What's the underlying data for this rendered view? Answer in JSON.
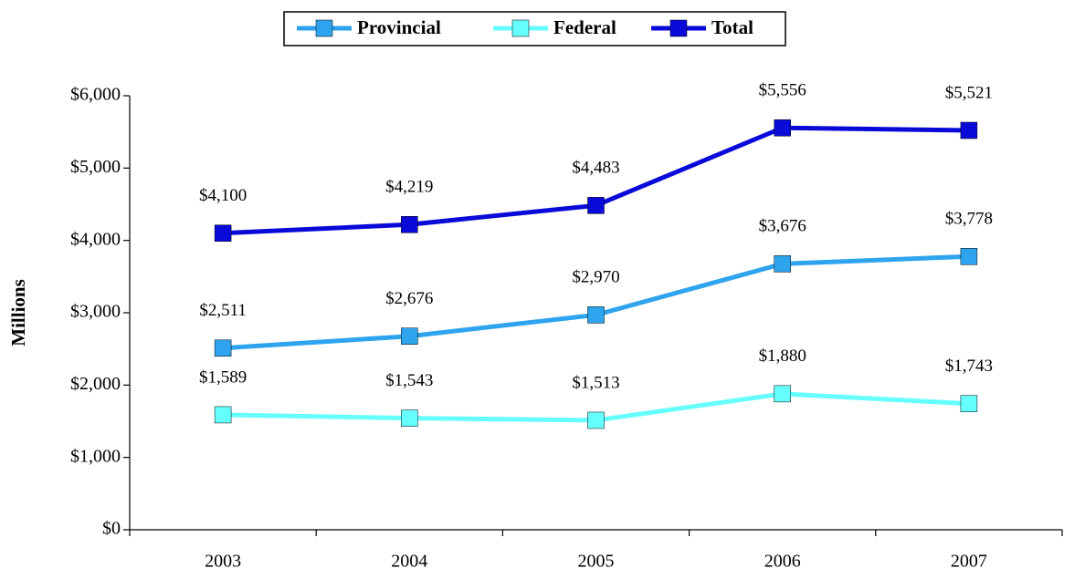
{
  "chart_data": {
    "type": "line",
    "y_label": "Millions",
    "categories": [
      "2003",
      "2004",
      "2005",
      "2006",
      "2007"
    ],
    "series": [
      {
        "name": "Provincial",
        "color": "#2ea3ee",
        "values": [
          2511,
          2676,
          2970,
          3676,
          3778
        ],
        "value_labels": [
          "$2,511",
          "$2,676",
          "$2,970",
          "$3,676",
          "$3,778"
        ]
      },
      {
        "name": "Federal",
        "color": "#66ffff",
        "values": [
          1589,
          1543,
          1513,
          1880,
          1743
        ],
        "value_labels": [
          "$1,589",
          "$1,543",
          "$1,513",
          "$1,880",
          "$1,743"
        ]
      },
      {
        "name": "Total",
        "color": "#0a0ad8",
        "values": [
          4100,
          4219,
          4483,
          5556,
          5521
        ],
        "value_labels": [
          "$4,100",
          "$4,219",
          "$4,483",
          "$5,556",
          "$5,521"
        ]
      }
    ],
    "ylim": [
      0,
      6000
    ],
    "yticks": [
      {
        "value": 0,
        "label": "$0"
      },
      {
        "value": 1000,
        "label": "$1,000"
      },
      {
        "value": 2000,
        "label": "$2,000"
      },
      {
        "value": 3000,
        "label": "$3,000"
      },
      {
        "value": 4000,
        "label": "$4,000"
      },
      {
        "value": 5000,
        "label": "$5,000"
      },
      {
        "value": 6000,
        "label": "$6,000"
      }
    ],
    "legend": "top"
  }
}
